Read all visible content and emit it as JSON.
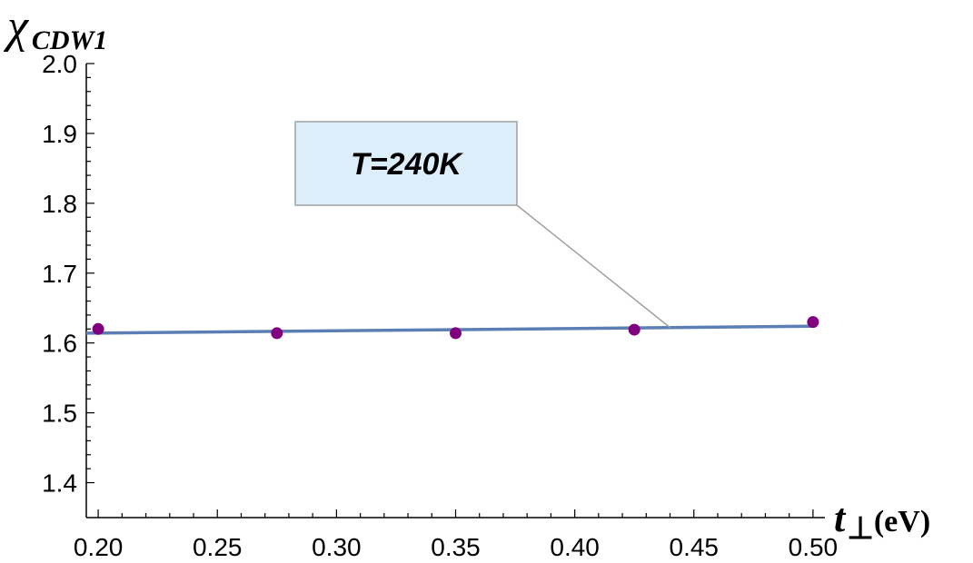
{
  "chart_data": {
    "type": "scatter",
    "title": "",
    "ylabel": {
      "symbol": "χ",
      "subscript": "CDW1"
    },
    "xlabel": {
      "symbol": "t",
      "subscript": "⊥",
      "unit": "(eV)"
    },
    "xlim": [
      0.195,
      0.505
    ],
    "ylim": [
      1.35,
      2.0
    ],
    "x_ticks": [
      {
        "value": 0.2,
        "label": "0.20"
      },
      {
        "value": 0.25,
        "label": "0.25"
      },
      {
        "value": 0.3,
        "label": "0.30"
      },
      {
        "value": 0.35,
        "label": "0.35"
      },
      {
        "value": 0.4,
        "label": "0.40"
      },
      {
        "value": 0.45,
        "label": "0.45"
      },
      {
        "value": 0.5,
        "label": "0.50"
      }
    ],
    "y_ticks": [
      {
        "value": 1.4,
        "label": "1.4"
      },
      {
        "value": 1.5,
        "label": "1.5"
      },
      {
        "value": 1.6,
        "label": "1.6"
      },
      {
        "value": 1.7,
        "label": "1.7"
      },
      {
        "value": 1.8,
        "label": "1.8"
      },
      {
        "value": 1.9,
        "label": "1.9"
      },
      {
        "value": 2.0,
        "label": "2.0"
      }
    ],
    "points": {
      "x": [
        0.2,
        0.275,
        0.35,
        0.425,
        0.5
      ],
      "y": [
        1.62,
        1.614,
        1.614,
        1.619,
        1.63
      ],
      "color": "#800080"
    },
    "fit_line": {
      "x": [
        0.195,
        0.5
      ],
      "y": [
        1.614,
        1.624
      ],
      "color": "#5b7fb4"
    },
    "annotation": {
      "text": "T=240K",
      "target": {
        "x": 0.44,
        "y": 1.622
      },
      "box_fill": "#ddeefb",
      "box_stroke": "#a0a0a0"
    },
    "grid": false,
    "legend": "none"
  }
}
